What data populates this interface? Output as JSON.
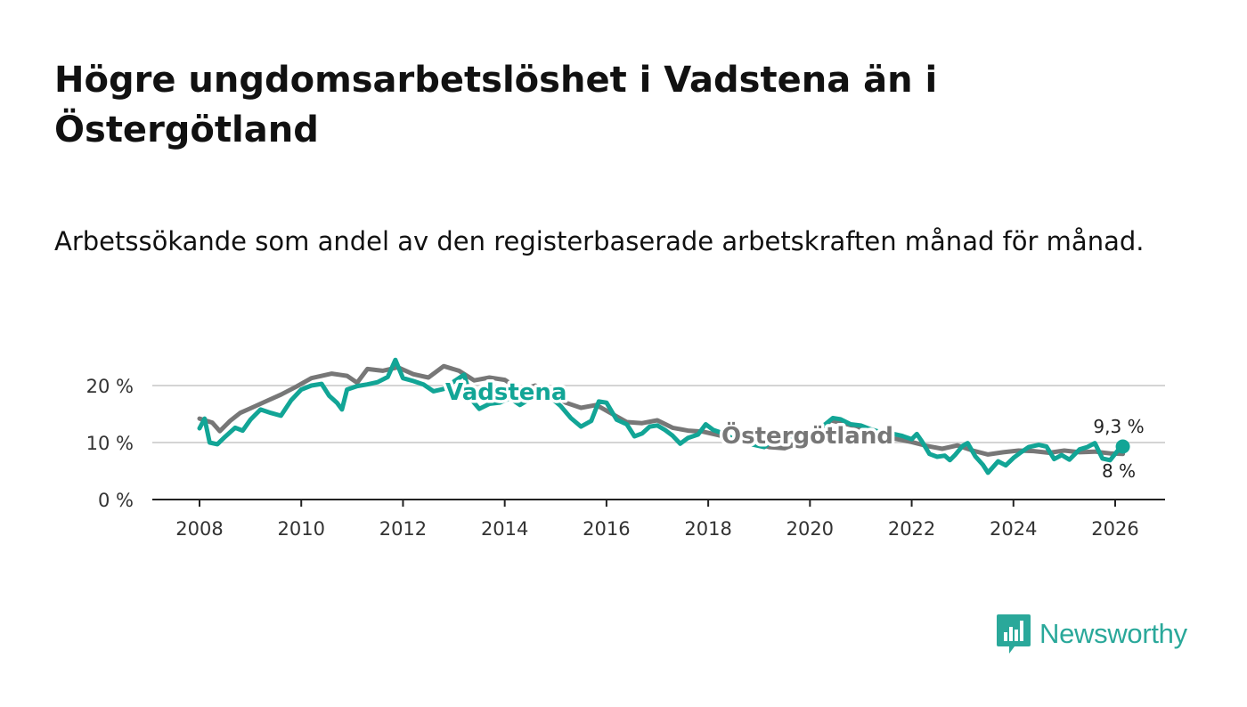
{
  "title": "Högre ungdomsarbetslöshet i Vadstena än i Östergötland",
  "subtitle": "Arbetssökande som andel av den registerbaserade arbetskraften månad för månad.",
  "brand": {
    "name": "Newsworthy",
    "color": "#2aa89a",
    "icon": "bar-chart-speech-bubble-icon"
  },
  "colors": {
    "vadstena": "#12a596",
    "ostergotland": "#777777",
    "grid": "#d4d4d4",
    "axis": "#222222"
  },
  "chart_data": {
    "type": "line",
    "title": "Högre ungdomsarbetslöshet i Vadstena än i Östergötland",
    "xlabel": "",
    "ylabel": "",
    "xlim": [
      2007.1,
      2027.0
    ],
    "ylim": [
      0,
      25
    ],
    "x_ticks": [
      2008,
      2010,
      2012,
      2014,
      2016,
      2018,
      2020,
      2022,
      2024,
      2026
    ],
    "x_tick_labels": [
      "2008",
      "2010",
      "2012",
      "2014",
      "2016",
      "2018",
      "2020",
      "2022",
      "2024",
      "2026"
    ],
    "y_ticks": [
      0,
      10,
      20
    ],
    "y_tick_labels": [
      "0 %",
      "10 %",
      "20 %"
    ],
    "series": [
      {
        "name": "Östergötland",
        "label": "Östergötland",
        "end_label": "8 %",
        "points": [
          [
            2008.0,
            14.2
          ],
          [
            2008.25,
            13.5
          ],
          [
            2008.4,
            12.0
          ],
          [
            2008.6,
            13.8
          ],
          [
            2008.8,
            15.2
          ],
          [
            2009.0,
            16.0
          ],
          [
            2009.3,
            17.2
          ],
          [
            2009.6,
            18.4
          ],
          [
            2009.9,
            19.8
          ],
          [
            2010.2,
            21.3
          ],
          [
            2010.6,
            22.1
          ],
          [
            2010.9,
            21.7
          ],
          [
            2011.1,
            20.5
          ],
          [
            2011.3,
            22.9
          ],
          [
            2011.6,
            22.6
          ],
          [
            2011.9,
            23.2
          ],
          [
            2012.2,
            22.0
          ],
          [
            2012.5,
            21.4
          ],
          [
            2012.8,
            23.4
          ],
          [
            2013.1,
            22.6
          ],
          [
            2013.4,
            20.9
          ],
          [
            2013.7,
            21.4
          ],
          [
            2014.0,
            21.0
          ],
          [
            2014.3,
            19.2
          ],
          [
            2014.6,
            20.0
          ],
          [
            2014.9,
            18.6
          ],
          [
            2015.2,
            17.0
          ],
          [
            2015.5,
            16.1
          ],
          [
            2015.8,
            16.6
          ],
          [
            2016.1,
            15.1
          ],
          [
            2016.4,
            13.6
          ],
          [
            2016.7,
            13.4
          ],
          [
            2017.0,
            13.9
          ],
          [
            2017.3,
            12.6
          ],
          [
            2017.6,
            12.1
          ],
          [
            2017.9,
            11.9
          ],
          [
            2018.2,
            11.3
          ],
          [
            2018.5,
            10.6
          ],
          [
            2018.9,
            9.9
          ],
          [
            2019.2,
            9.2
          ],
          [
            2019.5,
            9.0
          ],
          [
            2019.8,
            10.0
          ],
          [
            2020.1,
            10.6
          ],
          [
            2020.4,
            13.9
          ],
          [
            2020.7,
            13.3
          ],
          [
            2021.0,
            12.6
          ],
          [
            2021.3,
            11.4
          ],
          [
            2021.6,
            10.8
          ],
          [
            2022.0,
            10.1
          ],
          [
            2022.3,
            9.4
          ],
          [
            2022.6,
            8.9
          ],
          [
            2022.9,
            9.5
          ],
          [
            2023.2,
            8.6
          ],
          [
            2023.5,
            7.9
          ],
          [
            2023.8,
            8.3
          ],
          [
            2024.1,
            8.6
          ],
          [
            2024.4,
            8.5
          ],
          [
            2024.7,
            8.2
          ],
          [
            2025.0,
            8.6
          ],
          [
            2025.3,
            8.3
          ],
          [
            2025.6,
            8.4
          ],
          [
            2025.9,
            8.1
          ],
          [
            2026.15,
            8.0
          ]
        ]
      },
      {
        "name": "Vadstena",
        "label": "Vadstena",
        "end_label": "9,3 %",
        "points": [
          [
            2008.0,
            12.5
          ],
          [
            2008.1,
            14.2
          ],
          [
            2008.2,
            10.0
          ],
          [
            2008.35,
            9.7
          ],
          [
            2008.5,
            11.0
          ],
          [
            2008.7,
            12.6
          ],
          [
            2008.85,
            12.1
          ],
          [
            2009.0,
            14.0
          ],
          [
            2009.2,
            15.8
          ],
          [
            2009.4,
            15.2
          ],
          [
            2009.6,
            14.7
          ],
          [
            2009.8,
            17.4
          ],
          [
            2010.0,
            19.3
          ],
          [
            2010.2,
            20.0
          ],
          [
            2010.4,
            20.3
          ],
          [
            2010.55,
            18.2
          ],
          [
            2010.7,
            17.0
          ],
          [
            2010.8,
            15.8
          ],
          [
            2010.9,
            19.3
          ],
          [
            2011.1,
            19.9
          ],
          [
            2011.3,
            20.2
          ],
          [
            2011.5,
            20.6
          ],
          [
            2011.7,
            21.5
          ],
          [
            2011.85,
            24.5
          ],
          [
            2012.0,
            21.3
          ],
          [
            2012.2,
            20.8
          ],
          [
            2012.4,
            20.2
          ],
          [
            2012.6,
            19.0
          ],
          [
            2012.8,
            19.4
          ],
          [
            2013.0,
            20.7
          ],
          [
            2013.2,
            21.9
          ],
          [
            2013.35,
            17.5
          ],
          [
            2013.5,
            15.9
          ],
          [
            2013.7,
            16.8
          ],
          [
            2013.9,
            17.0
          ],
          [
            2014.1,
            17.8
          ],
          [
            2014.3,
            16.6
          ],
          [
            2014.5,
            17.7
          ],
          [
            2014.7,
            19.8
          ],
          [
            2014.9,
            17.9
          ],
          [
            2015.1,
            16.4
          ],
          [
            2015.3,
            14.3
          ],
          [
            2015.5,
            12.8
          ],
          [
            2015.7,
            13.8
          ],
          [
            2015.85,
            17.2
          ],
          [
            2016.0,
            17.0
          ],
          [
            2016.2,
            14.0
          ],
          [
            2016.4,
            13.2
          ],
          [
            2016.55,
            11.1
          ],
          [
            2016.7,
            11.6
          ],
          [
            2016.85,
            12.8
          ],
          [
            2017.0,
            13.0
          ],
          [
            2017.15,
            12.2
          ],
          [
            2017.3,
            11.2
          ],
          [
            2017.45,
            9.8
          ],
          [
            2017.6,
            10.8
          ],
          [
            2017.8,
            11.4
          ],
          [
            2017.95,
            13.2
          ],
          [
            2018.1,
            12.2
          ],
          [
            2018.3,
            11.6
          ],
          [
            2018.5,
            10.6
          ],
          [
            2018.7,
            10.0
          ],
          [
            2018.9,
            9.6
          ],
          [
            2019.1,
            9.2
          ],
          [
            2019.3,
            10.6
          ],
          [
            2019.5,
            11.4
          ],
          [
            2019.7,
            10.9
          ],
          [
            2019.9,
            11.4
          ],
          [
            2020.1,
            11.8
          ],
          [
            2020.3,
            13.2
          ],
          [
            2020.45,
            14.3
          ],
          [
            2020.6,
            14.1
          ],
          [
            2020.8,
            13.2
          ],
          [
            2021.0,
            13.0
          ],
          [
            2021.2,
            12.3
          ],
          [
            2021.4,
            11.8
          ],
          [
            2021.6,
            11.6
          ],
          [
            2021.8,
            11.2
          ],
          [
            2022.0,
            10.6
          ],
          [
            2022.1,
            11.5
          ],
          [
            2022.2,
            10.2
          ],
          [
            2022.35,
            8.0
          ],
          [
            2022.5,
            7.5
          ],
          [
            2022.65,
            7.7
          ],
          [
            2022.75,
            6.9
          ],
          [
            2022.85,
            7.8
          ],
          [
            2023.0,
            9.4
          ],
          [
            2023.1,
            9.9
          ],
          [
            2023.25,
            7.6
          ],
          [
            2023.4,
            6.1
          ],
          [
            2023.5,
            4.7
          ],
          [
            2023.7,
            6.7
          ],
          [
            2023.85,
            6.0
          ],
          [
            2024.0,
            7.3
          ],
          [
            2024.15,
            8.3
          ],
          [
            2024.3,
            9.2
          ],
          [
            2024.5,
            9.6
          ],
          [
            2024.65,
            9.3
          ],
          [
            2024.8,
            7.1
          ],
          [
            2024.95,
            7.8
          ],
          [
            2025.1,
            7.0
          ],
          [
            2025.3,
            8.8
          ],
          [
            2025.45,
            9.2
          ],
          [
            2025.6,
            9.9
          ],
          [
            2025.75,
            7.2
          ],
          [
            2025.9,
            6.9
          ],
          [
            2026.05,
            8.6
          ],
          [
            2026.15,
            9.3
          ]
        ]
      }
    ]
  }
}
